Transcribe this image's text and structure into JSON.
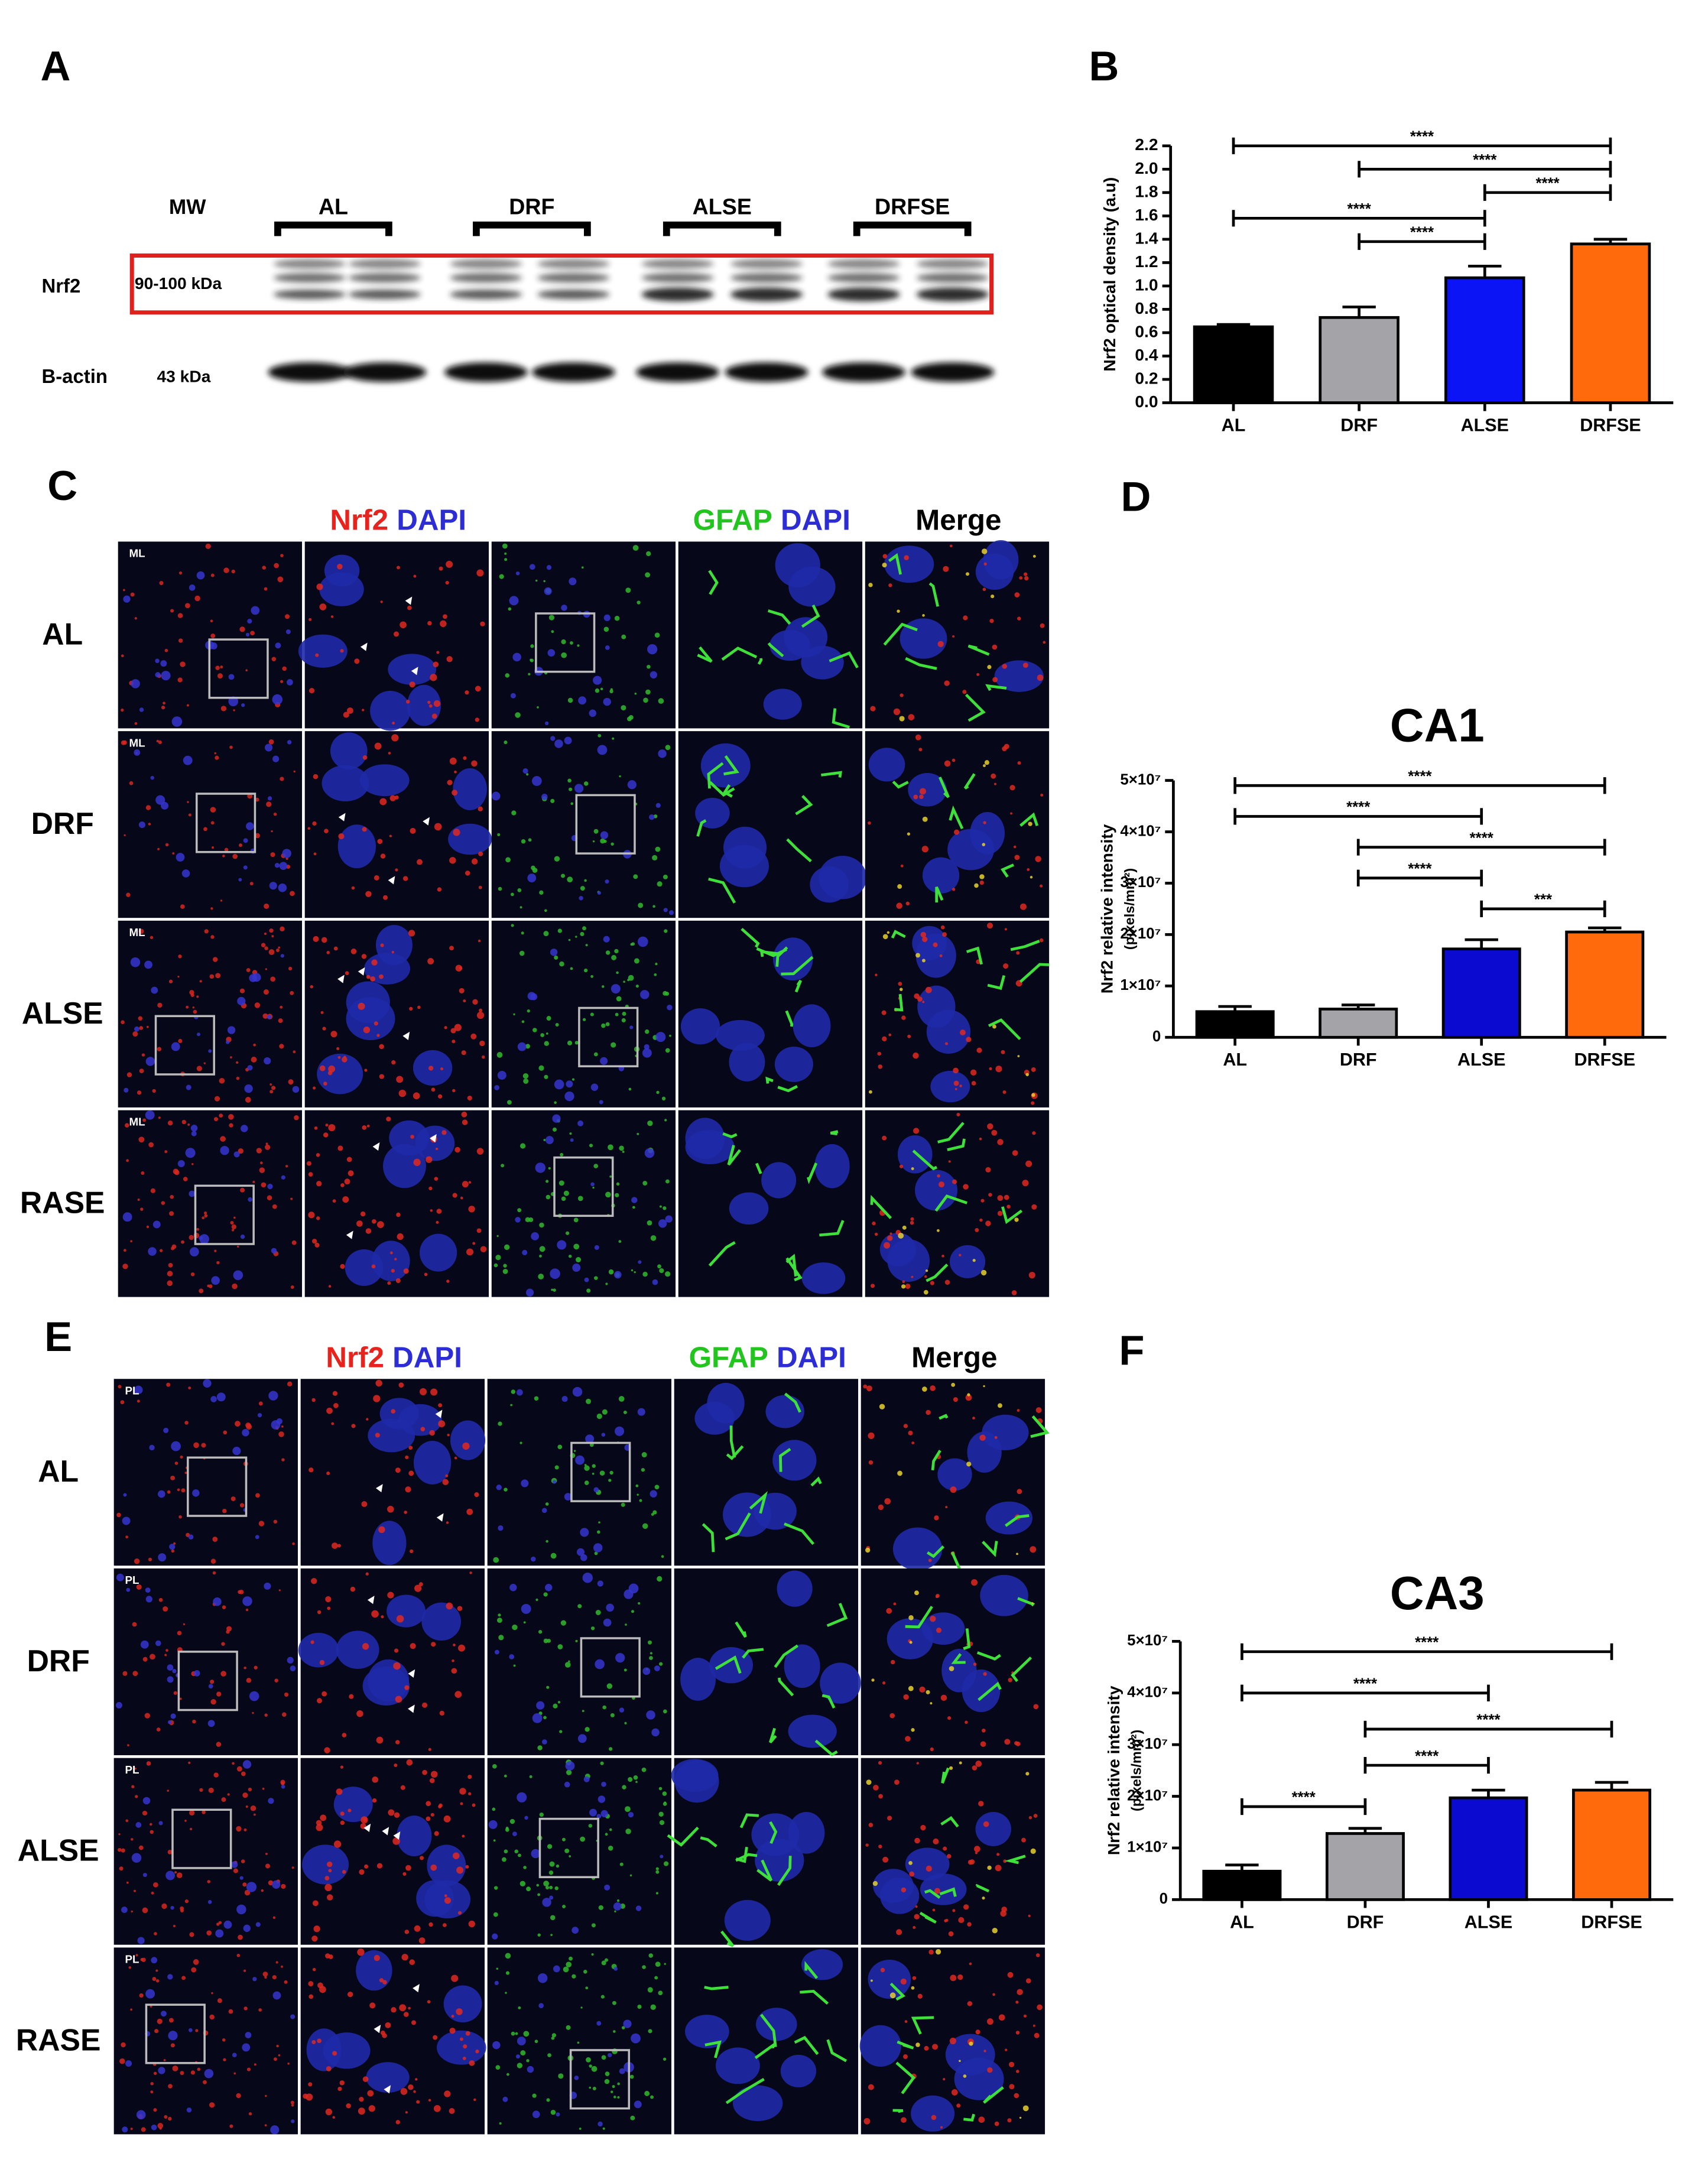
{
  "figure": {
    "panel_labels": [
      "A",
      "B",
      "C",
      "D",
      "E",
      "F"
    ],
    "blot": {
      "mw": "MW",
      "groups": [
        "AL",
        "DRF",
        "ALSE",
        "DRFSE"
      ],
      "rows": [
        {
          "name": "Nrf2",
          "size": "90-100 kDa"
        },
        {
          "name": "B-actin",
          "size": "43 kDa"
        }
      ]
    },
    "micrographs": [
      {
        "region": "ML",
        "rows": [
          "AL",
          "DRF",
          "ALSE",
          "RASE"
        ],
        "headers": [
          [
            {
              "text": "Nrf2",
              "color": "#e8231e"
            },
            {
              "text": "DAPI",
              "color": "#2d2dd6"
            }
          ],
          [
            {
              "text": "GFAP",
              "color": "#22c41e"
            },
            {
              "text": "DAPI",
              "color": "#2d2dd6"
            }
          ],
          [
            {
              "text": "Merge",
              "color": "#000000"
            }
          ]
        ]
      },
      {
        "region": "PL",
        "rows": [
          "AL",
          "DRF",
          "ALSE",
          "RASE"
        ],
        "headers": [
          [
            {
              "text": "Nrf2",
              "color": "#e8231e"
            },
            {
              "text": "DAPI",
              "color": "#2d2dd6"
            }
          ],
          [
            {
              "text": "GFAP",
              "color": "#22c41e"
            },
            {
              "text": "DAPI",
              "color": "#2d2dd6"
            }
          ],
          [
            {
              "text": "Merge",
              "color": "#000000"
            }
          ]
        ]
      }
    ]
  },
  "chart_data": [
    {
      "type": "bar",
      "y_label": [
        "Nrf2 optical density (a.u)"
      ],
      "categories": [
        "AL",
        "DRF",
        "ALSE",
        "DRFSE"
      ],
      "values": [
        0.65,
        0.73,
        1.07,
        1.36
      ],
      "errors": [
        0.02,
        0.09,
        0.1,
        0.04
      ],
      "colors": [
        "#000000",
        "#a3a3a8",
        "#0a14f5",
        "#ff6a0d"
      ],
      "ylim": [
        0,
        2.2
      ],
      "yticks": [
        {
          "value": 0,
          "label": "0.0"
        },
        {
          "value": 0.2,
          "label": "0.2"
        },
        {
          "value": 0.4,
          "label": "0.4"
        },
        {
          "value": 0.6,
          "label": "0.6"
        },
        {
          "value": 0.8,
          "label": "0.8"
        },
        {
          "value": 1,
          "label": "1.0"
        },
        {
          "value": 1.2,
          "label": "1.2"
        },
        {
          "value": 1.4,
          "label": "1.4"
        },
        {
          "value": 1.6,
          "label": "1.6"
        },
        {
          "value": 1.8,
          "label": "1.8"
        },
        {
          "value": 2,
          "label": "2.0"
        },
        {
          "value": 2.2,
          "label": "2.2"
        }
      ],
      "comparisons": [
        {
          "from": "AL",
          "to": "DRFSE",
          "level": 2.2,
          "label": "****"
        },
        {
          "from": "DRF",
          "to": "DRFSE",
          "level": 2.0,
          "label": "****"
        },
        {
          "from": "ALSE",
          "to": "DRFSE",
          "level": 1.8,
          "label": "****"
        },
        {
          "from": "AL",
          "to": "ALSE",
          "level": 1.58,
          "label": "****"
        },
        {
          "from": "DRF",
          "to": "ALSE",
          "level": 1.38,
          "label": "****"
        }
      ]
    },
    {
      "type": "bar",
      "title": "CA1",
      "y_label": [
        "Nrf2 relative intensity",
        "(pixels/mm²)"
      ],
      "categories": [
        "AL",
        "DRF",
        "ALSE",
        "DRFSE"
      ],
      "values": [
        5000000,
        5500000,
        17200000,
        20500000
      ],
      "errors": [
        1000000,
        800000,
        1800000,
        800000
      ],
      "colors": [
        "#000000",
        "#a3a3a8",
        "#0a0ad0",
        "#ff6a0d"
      ],
      "ylim": [
        0,
        50000000
      ],
      "yticks": [
        0,
        {
          "value": 10000000,
          "label": "1×10⁷"
        },
        {
          "value": 20000000,
          "label": "2×10⁷"
        },
        {
          "value": 30000000,
          "label": "3×10⁷"
        },
        {
          "value": 40000000,
          "label": "4×10⁷"
        },
        {
          "value": 50000000,
          "label": "5×10⁷"
        }
      ],
      "comparisons": [
        {
          "from": "AL",
          "to": "DRFSE",
          "level": 49000000,
          "label": "****"
        },
        {
          "from": "AL",
          "to": "ALSE",
          "level": 43000000,
          "label": "****"
        },
        {
          "from": "DRF",
          "to": "DRFSE",
          "level": 37000000,
          "label": "****"
        },
        {
          "from": "DRF",
          "to": "ALSE",
          "level": 31000000,
          "label": "****"
        },
        {
          "from": "ALSE",
          "to": "DRFSE",
          "level": 25000000,
          "label": "***"
        }
      ]
    },
    {
      "type": "bar",
      "title": "CA3",
      "y_label": [
        "Nrf2 relative intensity",
        "(pixels/mm²)"
      ],
      "categories": [
        "AL",
        "DRF",
        "ALSE",
        "DRFSE"
      ],
      "values": [
        5500000,
        12800000,
        19700000,
        21200000
      ],
      "errors": [
        1200000,
        1000000,
        1500000,
        1500000
      ],
      "colors": [
        "#000000",
        "#a3a3a8",
        "#0a0ad0",
        "#ff6a0d"
      ],
      "ylim": [
        0,
        50000000
      ],
      "yticks": [
        0,
        {
          "value": 10000000,
          "label": "1×10⁷"
        },
        {
          "value": 20000000,
          "label": "2×10⁷"
        },
        {
          "value": 30000000,
          "label": "3×10⁷"
        },
        {
          "value": 40000000,
          "label": "4×10⁷"
        },
        {
          "value": 50000000,
          "label": "5×10⁷"
        }
      ],
      "comparisons": [
        {
          "from": "AL",
          "to": "DRFSE",
          "level": 48000000,
          "label": "****"
        },
        {
          "from": "AL",
          "to": "ALSE",
          "level": 40000000,
          "label": "****"
        },
        {
          "from": "DRF",
          "to": "DRFSE",
          "level": 33000000,
          "label": "****"
        },
        {
          "from": "DRF",
          "to": "ALSE",
          "level": 26000000,
          "label": "****"
        },
        {
          "from": "AL",
          "to": "DRF",
          "level": 18000000,
          "label": "****"
        }
      ]
    }
  ]
}
